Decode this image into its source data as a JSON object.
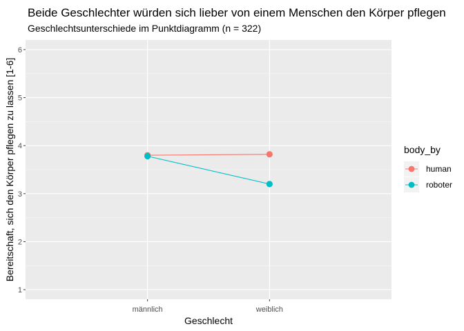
{
  "chart_data": {
    "type": "line",
    "title": "Beide Geschlechter würden sich lieber von einem Menschen den Körper pflegen",
    "subtitle": "Geschlechtsunterschiede im Punktdiagramm (n = 322)",
    "xlabel": "Geschlecht",
    "ylabel": "Bereitschaft, sich den Körper pflegen zu lassen [1-6]",
    "categories": [
      "männlich",
      "weiblich"
    ],
    "ylim": [
      0.8,
      6.2
    ],
    "yticks": [
      1,
      2,
      3,
      4,
      5,
      6
    ],
    "grid": true,
    "legend": {
      "title": "body_by",
      "position": "right"
    },
    "series": [
      {
        "name": "human",
        "color": "#F8766D",
        "values": [
          3.8,
          3.82
        ]
      },
      {
        "name": "roboter",
        "color": "#00BFC4",
        "values": [
          3.78,
          3.2
        ]
      }
    ]
  }
}
